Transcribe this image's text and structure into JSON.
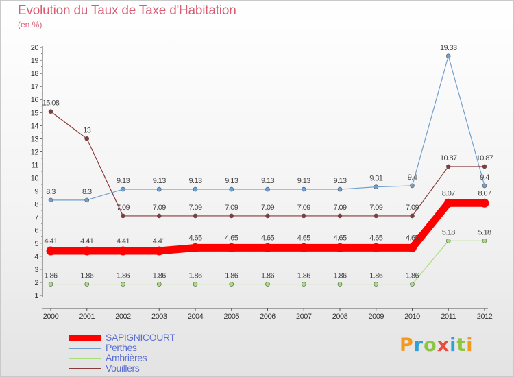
{
  "header": {
    "title": "Evolution du Taux de Taxe d'Habitation",
    "subtitle": "(en %)"
  },
  "brand": {
    "letters": [
      "P",
      "r",
      "o",
      "x",
      "i",
      "t",
      "i"
    ],
    "colors": [
      "#f19a1f",
      "#2f9fd8",
      "#8cc63f",
      "#e94b3c",
      "#2f9fd8",
      "#8cc63f",
      "#f19a1f"
    ]
  },
  "chart_data": {
    "type": "line",
    "x": [
      "2000",
      "2001",
      "2002",
      "2003",
      "2004",
      "2005",
      "2006",
      "2007",
      "2008",
      "2009",
      "2010",
      "2011",
      "2012"
    ],
    "ylim": [
      1,
      20
    ],
    "y_ticks": [
      "1",
      "2",
      "3",
      "4",
      "5",
      "6",
      "7",
      "8",
      "9",
      "10",
      "11",
      "12",
      "13",
      "14",
      "15",
      "16",
      "17",
      "18",
      "19",
      "20"
    ],
    "grid": false,
    "legend_position": "bottom-left",
    "series": [
      {
        "name": "SAPIGNICOURT",
        "color": "#ff0000",
        "values": [
          4.41,
          4.41,
          4.41,
          4.41,
          4.65,
          4.65,
          4.65,
          4.65,
          4.65,
          4.65,
          4.65,
          8.07,
          8.07
        ],
        "labels": [
          "4.41",
          "4.41",
          "4.41",
          "4.41",
          "4.65",
          "4.65",
          "4.65",
          "4.65",
          "4.65",
          "4.65",
          "4.65",
          "8.07",
          "8.07"
        ]
      },
      {
        "name": "Perthes",
        "color": "#6fa0d0",
        "values": [
          8.3,
          8.3,
          9.13,
          9.13,
          9.13,
          9.13,
          9.13,
          9.13,
          9.13,
          9.31,
          9.4,
          19.33,
          9.4
        ],
        "labels": [
          "8.3",
          "8.3",
          "9.13",
          "9.13",
          "9.13",
          "9.13",
          "9.13",
          "9.13",
          "9.13",
          "9.31",
          "9.4",
          "19.33",
          "9.4"
        ]
      },
      {
        "name": "Ambrières",
        "color": "#a6e07a",
        "values": [
          1.86,
          1.86,
          1.86,
          1.86,
          1.86,
          1.86,
          1.86,
          1.86,
          1.86,
          1.86,
          1.86,
          5.18,
          5.18
        ],
        "labels": [
          "1.86",
          "1.86",
          "1.86",
          "1.86",
          "1.86",
          "1.86",
          "1.86",
          "1.86",
          "1.86",
          "1.86",
          "1.86",
          "5.18",
          "5.18"
        ]
      },
      {
        "name": "Vouillers",
        "color": "#8a3a3a",
        "values": [
          15.08,
          13,
          7.09,
          7.09,
          7.09,
          7.09,
          7.09,
          7.09,
          7.09,
          7.09,
          7.09,
          10.87,
          10.87
        ],
        "labels": [
          "15.08",
          "13",
          "7.09",
          "7.09",
          "7.09",
          "7.09",
          "7.09",
          "7.09",
          "7.09",
          "7.09",
          "7.09",
          "10.87",
          "10.87"
        ]
      }
    ]
  }
}
